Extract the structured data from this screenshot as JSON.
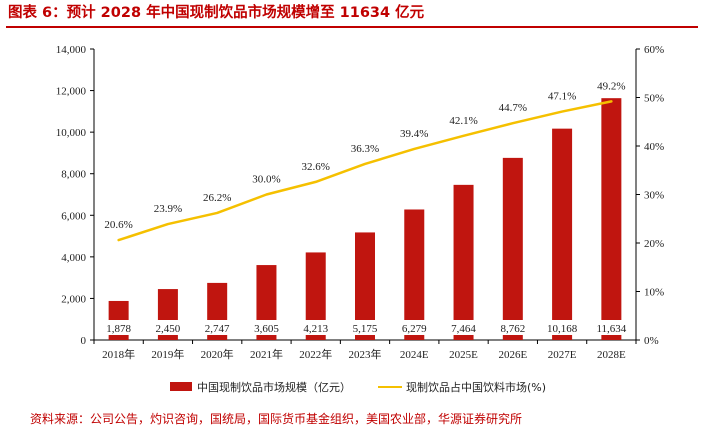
{
  "title": "图表 6：预计 2028 年中国现制饮品市场规模增至 11634 亿元",
  "source": "资料来源：公司公告，灼识咨询，国统局，国际货币基金组织，美国农业部，华源证券研究所",
  "colors": {
    "bar": "#c0150f",
    "line": "#f5c000",
    "title": "#c00000"
  },
  "chart_data": {
    "type": "bar",
    "categories": [
      "2018年",
      "2019年",
      "2020年",
      "2021年",
      "2022年",
      "2023年",
      "2024E",
      "2025E",
      "2026E",
      "2027E",
      "2028E"
    ],
    "series": [
      {
        "name": "中国现制饮品市场规模（亿元）",
        "type": "bar",
        "axis": "left",
        "values": [
          1878,
          2450,
          2747,
          3605,
          4213,
          5175,
          6279,
          7464,
          8762,
          10168,
          11634
        ],
        "labels": [
          "1,878",
          "2,450",
          "2,747",
          "3,605",
          "4,213",
          "5,175",
          "6,279",
          "7,464",
          "8,762",
          "10,168",
          "11,634"
        ]
      },
      {
        "name": "现制饮品占中国饮料市场(%)",
        "type": "line",
        "axis": "right",
        "values": [
          20.6,
          23.9,
          26.2,
          30.0,
          32.6,
          36.3,
          39.4,
          42.1,
          44.7,
          47.1,
          49.2
        ],
        "labels": [
          "20.6%",
          "23.9%",
          "26.2%",
          "30.0%",
          "32.6%",
          "36.3%",
          "39.4%",
          "42.1%",
          "44.7%",
          "47.1%",
          "49.2%"
        ]
      }
    ],
    "ylim": [
      0,
      14000
    ],
    "y2lim": [
      0,
      60
    ],
    "yticks": [
      "0",
      "2,000",
      "4,000",
      "6,000",
      "8,000",
      "10,000",
      "12,000",
      "14,000"
    ],
    "ytick_values": [
      0,
      2000,
      4000,
      6000,
      8000,
      10000,
      12000,
      14000
    ],
    "y2ticks": [
      "0%",
      "10%",
      "20%",
      "30%",
      "40%",
      "50%",
      "60%"
    ],
    "y2tick_values": [
      0,
      10,
      20,
      30,
      40,
      50,
      60
    ],
    "grid": false,
    "legend": "bottom"
  }
}
